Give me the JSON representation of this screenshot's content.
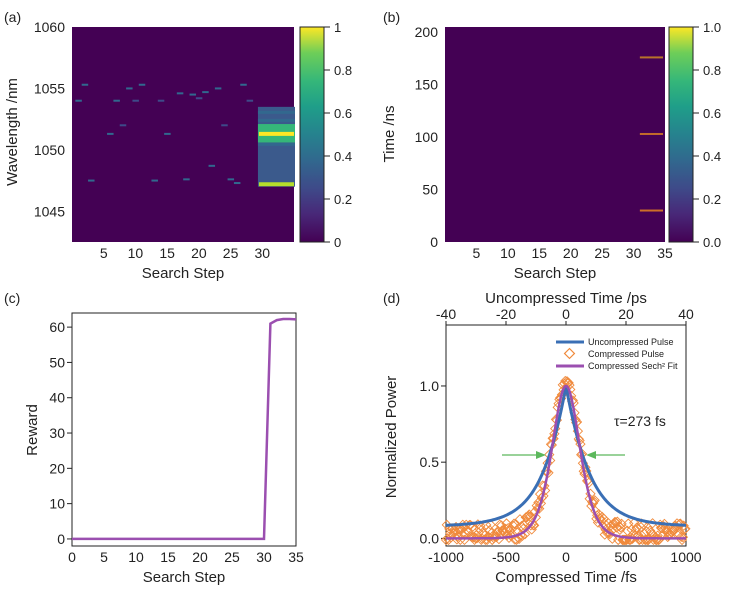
{
  "chart_data": [
    {
      "panel": "(a)",
      "type": "heatmap",
      "xlabel": "Search Step",
      "ylabel": "Wavelength /nm",
      "xlim": [
        0,
        35
      ],
      "ylim": [
        1042.5,
        1060
      ],
      "xticks": [
        5,
        10,
        15,
        20,
        25,
        30
      ],
      "yticks": [
        1045,
        1050,
        1055,
        1060
      ],
      "background": "#440154",
      "colorbar": {
        "ticks": [
          "0",
          "0.2",
          "0.4",
          "0.6",
          "0.8",
          "1"
        ],
        "values": [
          0,
          0.2,
          0.4,
          0.6,
          0.8,
          1
        ]
      },
      "marks": [
        {
          "step": 1,
          "value": 1054.0,
          "level": 0.3
        },
        {
          "step": 2,
          "value": 1055.3,
          "level": 0.3
        },
        {
          "step": 3,
          "value": 1047.5,
          "level": 0.35
        },
        {
          "step": 6,
          "value": 1051.3,
          "level": 0.35
        },
        {
          "step": 7,
          "value": 1054.0,
          "level": 0.3
        },
        {
          "step": 8,
          "value": 1052.0,
          "level": 0.25
        },
        {
          "step": 9,
          "value": 1055.0,
          "level": 0.3
        },
        {
          "step": 10,
          "value": 1054.0,
          "level": 0.25
        },
        {
          "step": 11,
          "value": 1055.3,
          "level": 0.3
        },
        {
          "step": 13,
          "value": 1047.5,
          "level": 0.35
        },
        {
          "step": 14,
          "value": 1054.0,
          "level": 0.25
        },
        {
          "step": 15,
          "value": 1051.3,
          "level": 0.35
        },
        {
          "step": 17,
          "value": 1054.6,
          "level": 0.3
        },
        {
          "step": 18,
          "value": 1047.6,
          "level": 0.3
        },
        {
          "step": 19,
          "value": 1054.5,
          "level": 0.3
        },
        {
          "step": 20,
          "value": 1054.2,
          "level": 0.25
        },
        {
          "step": 21,
          "value": 1054.7,
          "level": 0.3
        },
        {
          "step": 22,
          "value": 1048.7,
          "level": 0.3
        },
        {
          "step": 23,
          "value": 1055.0,
          "level": 0.3
        },
        {
          "step": 24,
          "value": 1052.0,
          "level": 0.25
        },
        {
          "step": 25,
          "value": 1047.6,
          "level": 0.3
        },
        {
          "step": 26,
          "value": 1047.3,
          "level": 0.3
        },
        {
          "step": 27,
          "value": 1055.3,
          "level": 0.3
        },
        {
          "step": 28,
          "value": 1054.0,
          "level": 0.25
        }
      ],
      "band": {
        "steps": [
          29,
          35
        ],
        "range": [
          1047.0,
          1053.5
        ],
        "peaks": [
          {
            "value": 1051.3,
            "level": 0.95
          },
          {
            "value": 1047.2,
            "level": 0.92
          }
        ]
      }
    },
    {
      "panel": "(b)",
      "type": "heatmap",
      "xlabel": "Search Step",
      "ylabel": "Time /ns",
      "xlim": [
        0,
        35
      ],
      "ylim": [
        0,
        205
      ],
      "xticks": [
        5,
        10,
        15,
        20,
        25,
        30,
        35
      ],
      "yticks": [
        0,
        50,
        100,
        150,
        200
      ],
      "background": "#440154",
      "colorbar": {
        "ticks": [
          "0.0",
          "0.2",
          "0.4",
          "0.6",
          "0.8",
          "1.0"
        ],
        "values": [
          0,
          0.2,
          0.4,
          0.6,
          0.8,
          1
        ]
      },
      "marks": [
        {
          "steps": [
            31,
            35
          ],
          "value": 176,
          "color": "#b8732a"
        },
        {
          "steps": [
            31,
            35
          ],
          "value": 103,
          "color": "#c26a2a"
        },
        {
          "steps": [
            31,
            35
          ],
          "value": 30,
          "color": "#cc6e28"
        }
      ]
    },
    {
      "panel": "(c)",
      "type": "line",
      "xlabel": "Search Step",
      "ylabel": "Reward",
      "xlim": [
        0,
        35
      ],
      "ylim": [
        -2,
        64
      ],
      "xticks": [
        0,
        5,
        10,
        15,
        20,
        25,
        30,
        35
      ],
      "yticks": [
        0,
        10,
        20,
        30,
        40,
        50,
        60
      ],
      "series": [
        {
          "name": "Reward",
          "color": "#9b4fb0",
          "x": [
            0,
            30,
            31,
            32,
            33,
            34,
            35
          ],
          "y": [
            0,
            0,
            61,
            62,
            62.3,
            62.3,
            62.2
          ]
        }
      ]
    },
    {
      "panel": "(d)",
      "type": "line",
      "xlabel": "Compressed Time /fs",
      "xlabel_top": "Uncompressed Time /ps",
      "ylabel": "Normalized Power",
      "xlim": [
        -1000,
        1000
      ],
      "xlim_top": [
        -40,
        40
      ],
      "ylim": [
        -0.05,
        1.4
      ],
      "xticks": [
        -1000,
        -500,
        0,
        500,
        1000
      ],
      "xticks_top": [
        -40,
        -20,
        0,
        20,
        40
      ],
      "yticks": [
        0.0,
        0.5,
        1.0
      ],
      "yticklabels": [
        "0.0",
        "0.5",
        "1.0"
      ],
      "annotation": "τ=273 fs",
      "series": [
        {
          "name": "Uncompressed Pulse",
          "color": "#3a6fb5",
          "marker": "line"
        },
        {
          "name": "Compressed Pulse",
          "color": "#f08a3c",
          "marker": "diamond"
        },
        {
          "name": "Compressed Sech² Fit",
          "color": "#9b4fb0",
          "marker": "line"
        }
      ],
      "uncompressed_fwhm_ps": 20,
      "sech2_fwhm_fs": 273
    }
  ]
}
